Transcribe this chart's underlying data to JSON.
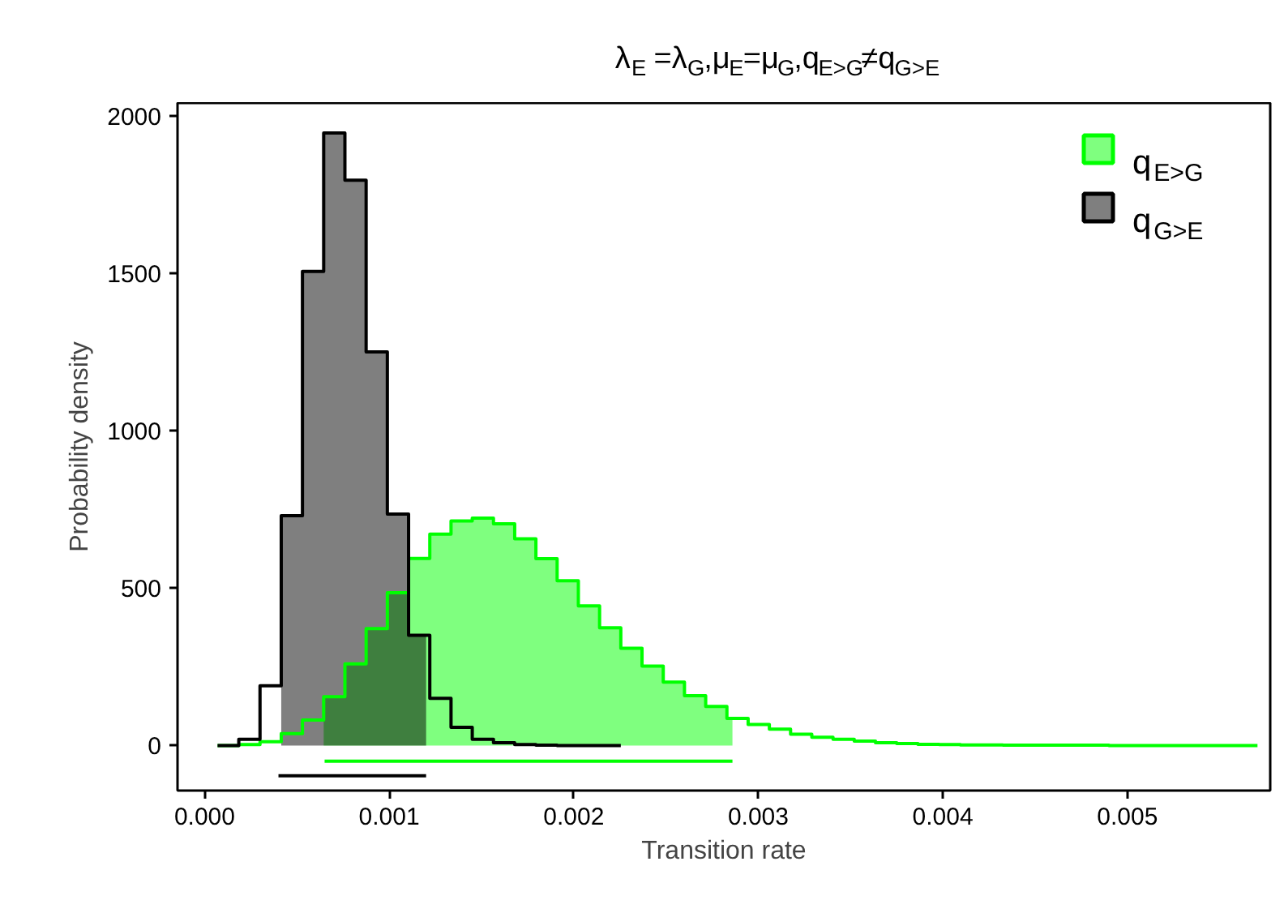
{
  "chart_data": {
    "type": "histogram",
    "title": "λ$_{E}$ =λ$_{G}$,μ$_{E}$=μ$_{G}$,q$_{E>G}$≠q$_{G>E}$",
    "xlabel": "Transition rate",
    "ylabel": "Probability density",
    "xlim": [
      -0.000147,
      0.005774
    ],
    "ylim": [
      -143,
      2040
    ],
    "xticks": [
      {
        "value": 0,
        "label": "0.000"
      },
      {
        "value": 0.001,
        "label": "0.001"
      },
      {
        "value": 0.002,
        "label": "0.002"
      },
      {
        "value": 0.003,
        "label": "0.003"
      },
      {
        "value": 0.004,
        "label": "0.004"
      },
      {
        "value": 0.005,
        "label": "0.005"
      }
    ],
    "yticks": [
      0,
      500,
      1000,
      1500,
      2000
    ],
    "grid": false,
    "legend": "top right",
    "series": [
      {
        "name": "q$_{E>G}$",
        "color": "#00ff00",
        "bins": [
          7e-05,
          0.000185,
          0.0003,
          0.000415,
          0.00053,
          0.000645,
          0.00076,
          0.000875,
          0.00099,
          0.001105,
          0.00122,
          0.001335,
          0.00145,
          0.001565,
          0.00168,
          0.001795,
          0.00191,
          0.002025,
          0.00214,
          0.002255,
          0.00237,
          0.002485,
          0.0026,
          0.002715,
          0.00283,
          0.002945,
          0.00306,
          0.003175,
          0.00329,
          0.003405,
          0.00352,
          0.003635,
          0.00375,
          0.003865,
          0.00398,
          0.004095,
          0.00421,
          0.004325,
          0.00444,
          0.004555,
          0.00467,
          0.004785,
          0.0049,
          0.005015,
          0.00513,
          0.005245,
          0.00536,
          0.005475,
          0.00559,
          0.005705
        ],
        "values": [
          0,
          3,
          12,
          38,
          81,
          155,
          259,
          371,
          485,
          594,
          671,
          713,
          722,
          704,
          656,
          593,
          523,
          443,
          374,
          309,
          252,
          201,
          158,
          124,
          86,
          67,
          52,
          36,
          26,
          20,
          14,
          9,
          6,
          4,
          3,
          2,
          2,
          1,
          1,
          1,
          1,
          1,
          0,
          0,
          0,
          0,
          0,
          0,
          0
        ]
      },
      {
        "name": "q$_{G>E}$",
        "color": "#000000",
        "bins": [
          7e-05,
          0.000185,
          0.0003,
          0.000415,
          0.00053,
          0.000645,
          0.00076,
          0.000875,
          0.00099,
          0.001105,
          0.00122,
          0.001335,
          0.00145,
          0.001565,
          0.00168,
          0.001795,
          0.00191,
          0.002025,
          0.00214,
          0.002255
        ],
        "values": [
          0,
          20,
          190,
          730,
          1505,
          1945,
          1795,
          1250,
          735,
          350,
          150,
          58,
          20,
          9,
          3,
          1,
          0,
          0,
          0
        ]
      },
      {
        "type": "area",
        "color": "#00ff00",
        "x": [
          0.000645,
          0.00076,
          0.000875,
          0.00099,
          0.001105,
          0.00122,
          0.001335,
          0.00145,
          0.001565,
          0.00168,
          0.001795,
          0.00191,
          0.002025,
          0.00214,
          0.002255,
          0.00237,
          0.002485,
          0.0026,
          0.002715,
          0.00283,
          0.00286
        ],
        "values": [
          155,
          259,
          371,
          485,
          594,
          671,
          713,
          722,
          704,
          656,
          593,
          523,
          443,
          374,
          309,
          252,
          201,
          158,
          124,
          86,
          86
        ]
      },
      {
        "type": "area",
        "color": "#000000",
        "x": [
          0.000415,
          0.00053,
          0.000645,
          0.00076,
          0.000875,
          0.00099,
          0.001105,
          0.0012
        ],
        "values": [
          730,
          1505,
          1945,
          1795,
          1250,
          735,
          350,
          350
        ]
      },
      {
        "type": "line",
        "color": "#00ff00",
        "x": [
          0.00065,
          0.00286
        ],
        "values": [
          -50,
          -50
        ]
      },
      {
        "type": "line",
        "color": "#000000",
        "x": [
          0.0004,
          0.0012
        ],
        "values": [
          -96,
          -96
        ]
      }
    ]
  }
}
